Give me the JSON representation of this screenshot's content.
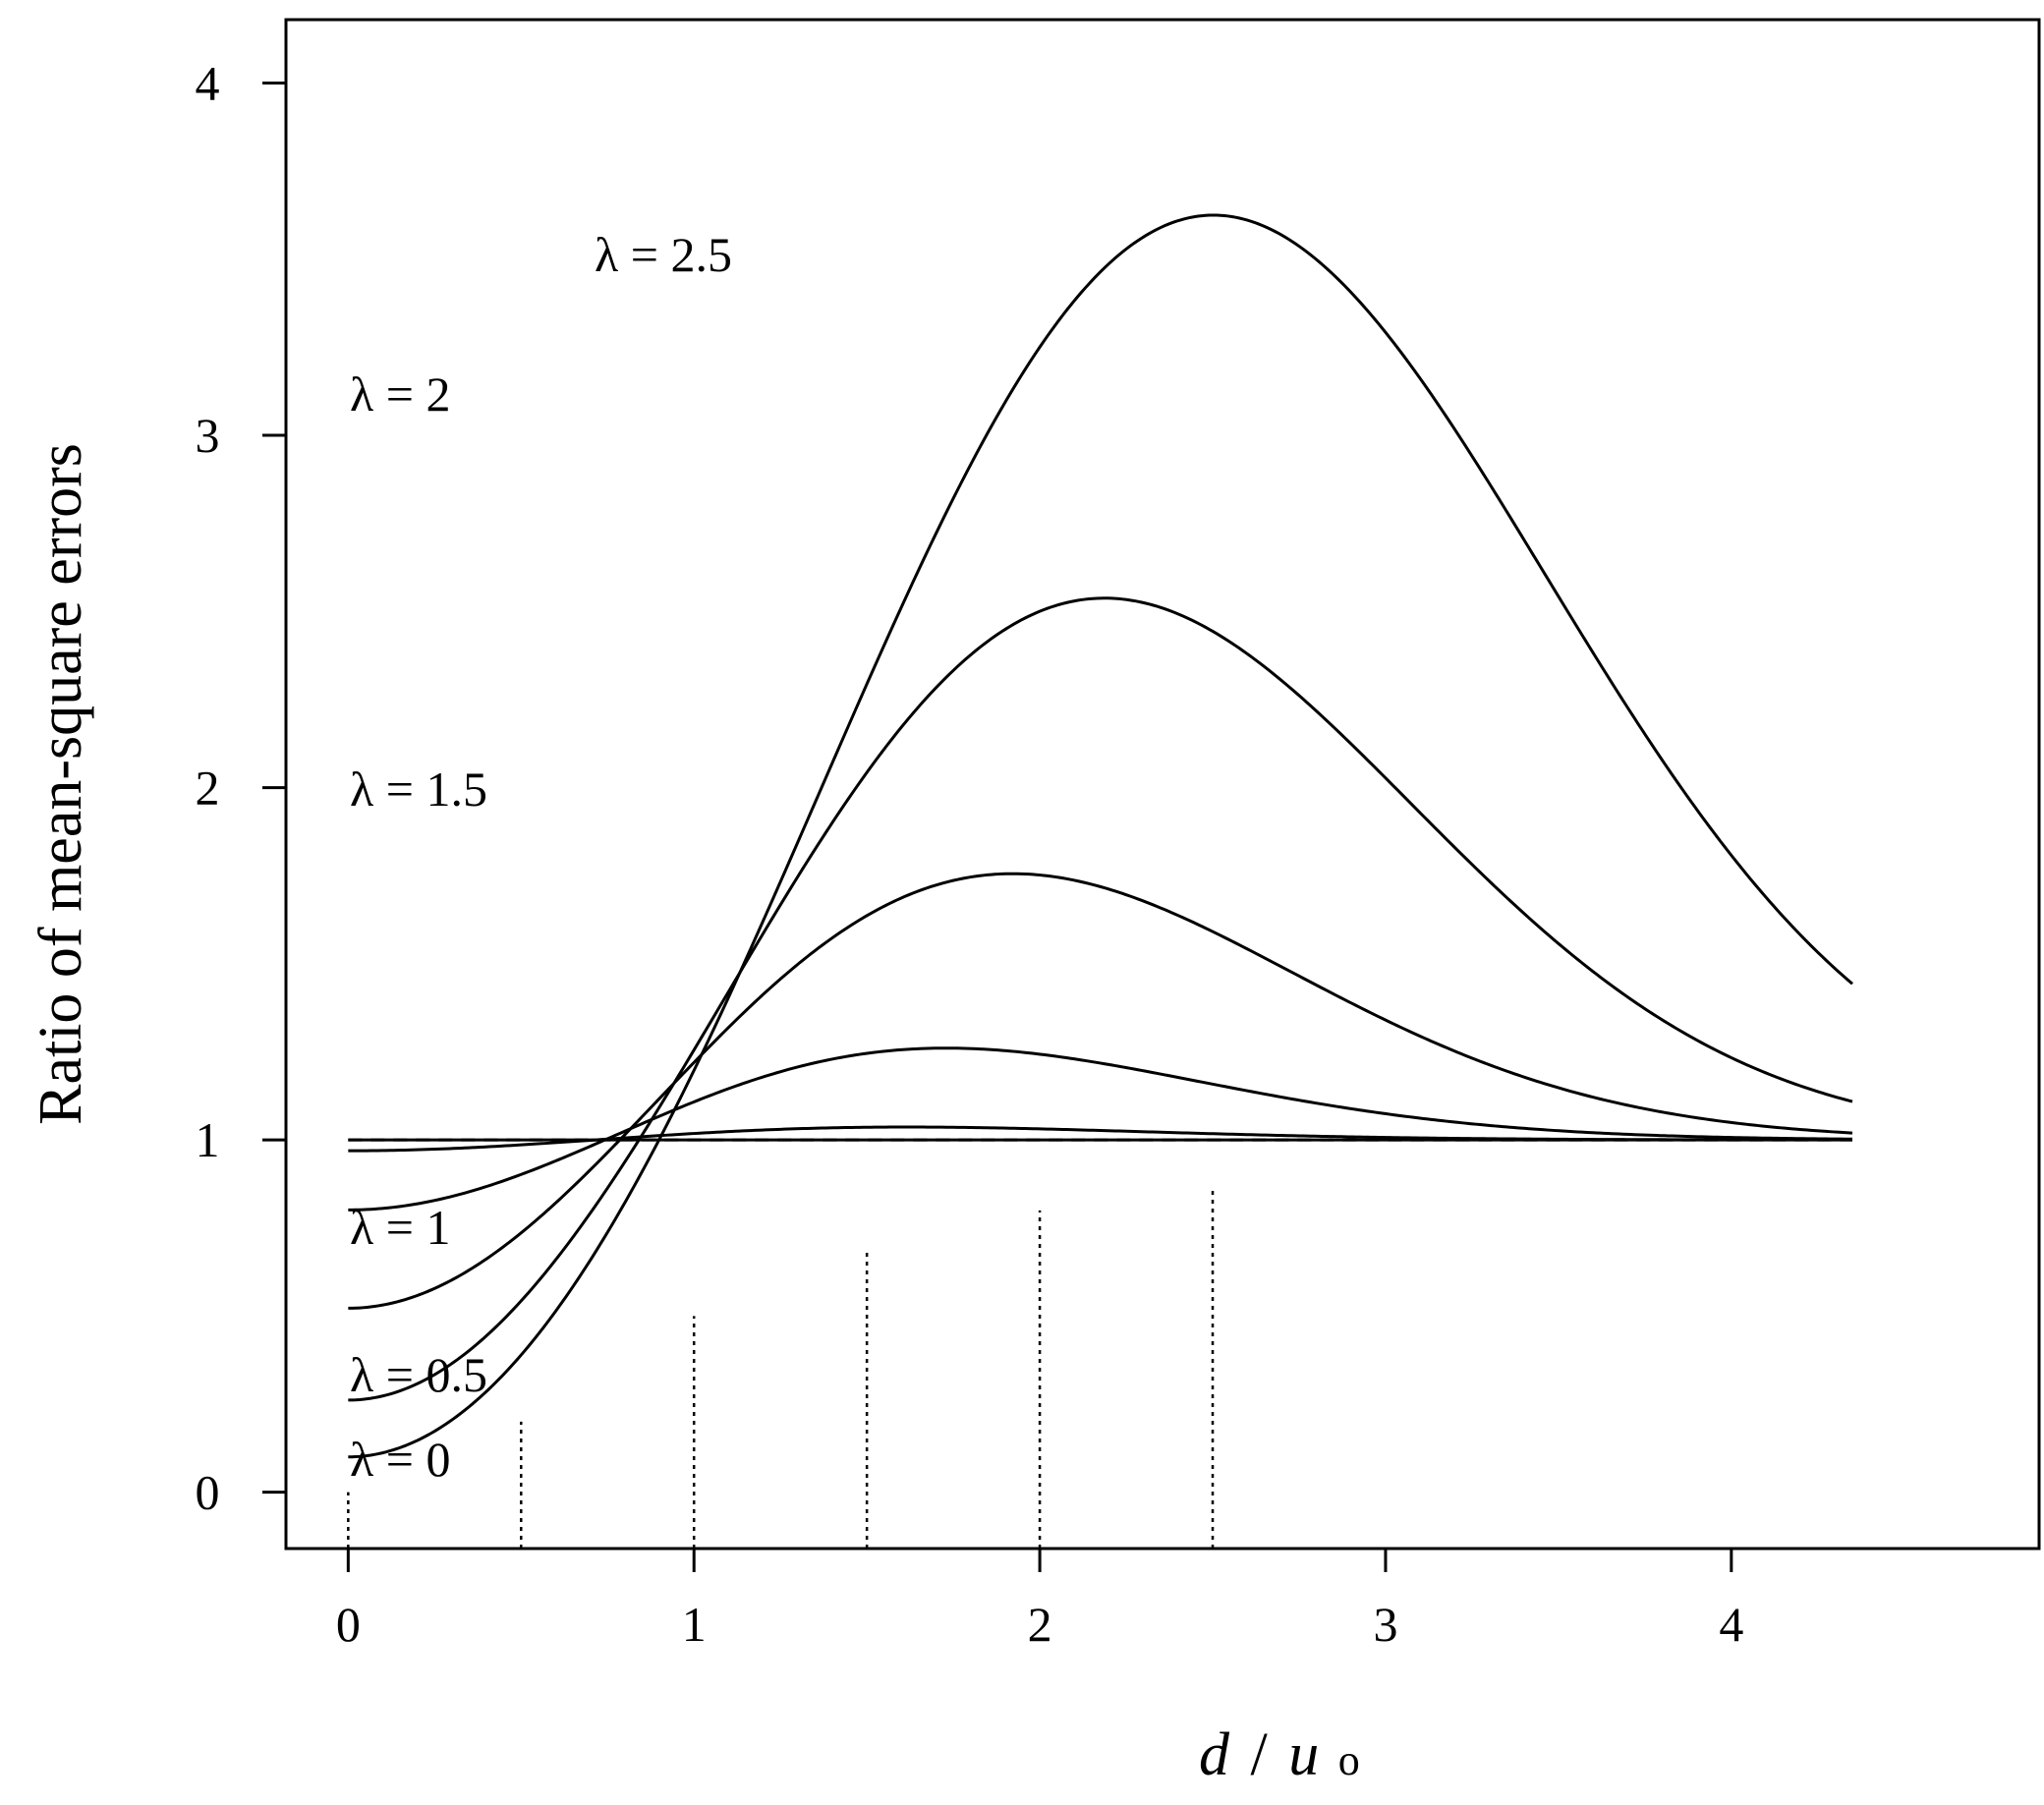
{
  "chart_data": {
    "type": "line",
    "title": "",
    "ylabel": "Ratio of mean-square errors",
    "xlabel_parts": {
      "d": "d",
      "slash": "/",
      "u": "u",
      "sub": "o"
    },
    "xlim": [
      -0.18,
      4.89
    ],
    "ylim": [
      -0.16,
      4.18
    ],
    "xticks": [
      0,
      1,
      2,
      3,
      4
    ],
    "yticks": [
      0,
      1,
      2,
      3,
      4
    ],
    "x_tick_labels": [
      "0",
      "1",
      "2",
      "3",
      "4"
    ],
    "y_tick_labels": [
      "0",
      "1",
      "2",
      "3",
      "4"
    ],
    "reference_line": {
      "y": 1,
      "x_range": [
        0,
        4.35
      ],
      "style": "dashed"
    },
    "optimum_markers": {
      "style": "dotted",
      "x": [
        0,
        0.5,
        1,
        1.5,
        2,
        2.5
      ],
      "y": [
        0,
        0.2,
        0.5,
        0.69,
        0.8,
        0.86
      ]
    },
    "x_range": [
      0,
      4.35
    ],
    "series": [
      {
        "lambda": 0,
        "name": "λ = 0"
      },
      {
        "lambda": 0.5,
        "name": "λ = 0.5"
      },
      {
        "lambda": 1,
        "name": "λ = 1"
      },
      {
        "lambda": 1.5,
        "name": "λ = 1.5"
      },
      {
        "lambda": 2,
        "name": "λ = 2"
      },
      {
        "lambda": 2.5,
        "name": "λ = 2.5"
      }
    ],
    "grid": false,
    "legend": "inline labels"
  }
}
